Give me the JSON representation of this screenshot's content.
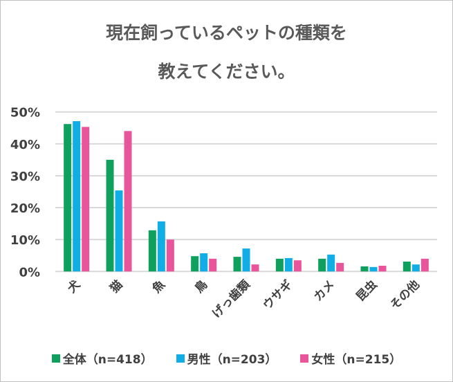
{
  "chart_data": {
    "type": "bar",
    "title_lines": [
      "現在飼っているペットの種類を",
      "教えてください。"
    ],
    "categories": [
      "犬",
      "猫",
      "魚",
      "鳥",
      "げっ歯類",
      "ウサギ",
      "カメ",
      "昆虫",
      "その他"
    ],
    "series": [
      {
        "name": "全体（n=418）",
        "color": "#0ea05c",
        "values": [
          46.2,
          35.0,
          12.9,
          4.8,
          4.6,
          4.0,
          4.0,
          1.6,
          3.1
        ]
      },
      {
        "name": "男性（n=203）",
        "color": "#11aee6",
        "values": [
          47.1,
          25.4,
          15.7,
          5.7,
          7.2,
          4.2,
          5.3,
          1.4,
          2.2
        ]
      },
      {
        "name": "女性（n=215）",
        "color": "#e8559a",
        "values": [
          45.3,
          44.0,
          10.0,
          4.0,
          2.2,
          3.5,
          2.7,
          1.8,
          4.0
        ]
      }
    ],
    "yticks": [
      "0%",
      "10%",
      "20%",
      "30%",
      "40%",
      "50%"
    ],
    "ylim": [
      0,
      50
    ],
    "grid": true,
    "legend": "bottom"
  }
}
